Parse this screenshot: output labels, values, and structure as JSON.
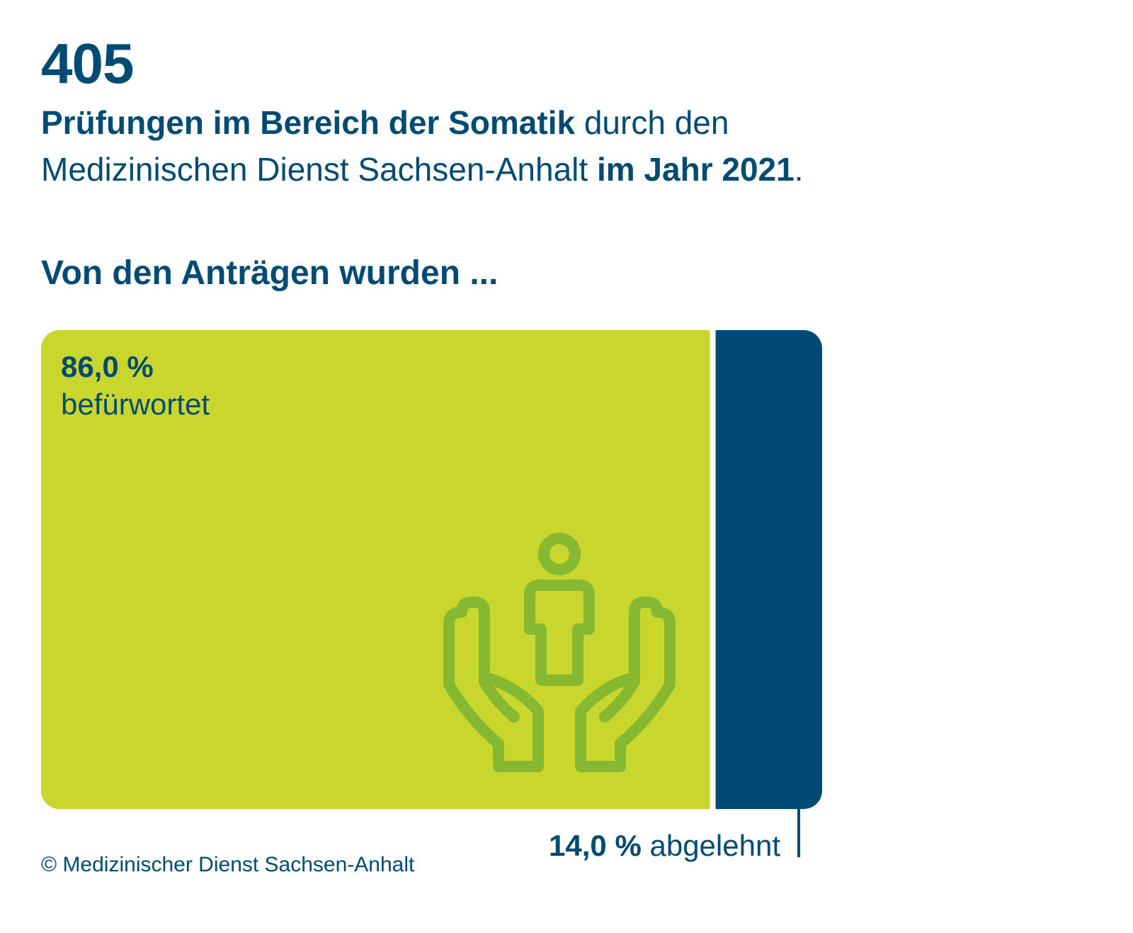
{
  "header": {
    "total": "405",
    "subtitle_bold_1": "Prüfungen im Bereich der Somatik",
    "subtitle_normal_1": " durch den",
    "subtitle_normal_2": "Medizinischen Dienst Sachsen-Anhalt ",
    "subtitle_bold_2": "im Jahr 2021",
    "subtitle_end": "."
  },
  "section_heading": "Von den Anträgen wurden ...",
  "chart_data": {
    "type": "bar",
    "orientation": "horizontal-stacked",
    "unit": "%",
    "segments": [
      {
        "label": "befürwortet",
        "value": 86.0,
        "value_label": "86,0 %",
        "color": "#c8d62d"
      },
      {
        "label": "abgelehnt",
        "value": 14.0,
        "value_label": "14,0 %",
        "color": "#004b73"
      }
    ],
    "icon": "hands-holding-person-icon",
    "icon_color": "#86b832"
  },
  "footer": {
    "copyright": "© Medizinischer Dienst Sachsen-Anhalt"
  }
}
